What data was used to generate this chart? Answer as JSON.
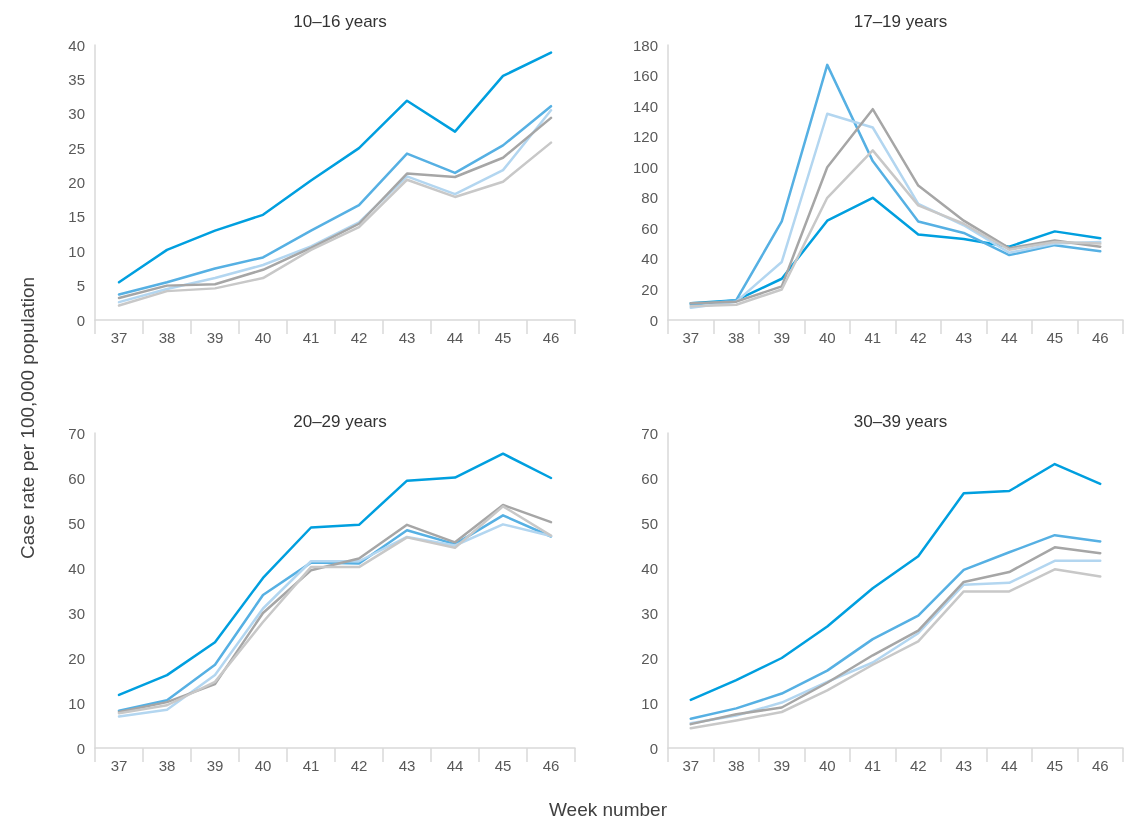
{
  "chart_data": [
    {
      "type": "line",
      "title": "10–16 years",
      "ylabel": "Case rate per 100,000 population",
      "categories": [
        "37",
        "38",
        "39",
        "40",
        "41",
        "42",
        "43",
        "44",
        "45",
        "46"
      ],
      "ylim": [
        0,
        40
      ],
      "yticks": [
        0,
        5,
        10,
        15,
        20,
        25,
        30,
        35,
        40
      ],
      "series": [
        {
          "color": "#009fdf",
          "values": [
            5.5,
            10.2,
            13,
            15.3,
            20.3,
            25,
            31.9,
            27.4,
            35.5,
            38.9
          ]
        },
        {
          "color": "#56b0e3",
          "values": [
            3.7,
            5.5,
            7.5,
            9.1,
            13,
            16.7,
            24.2,
            21.4,
            25.4,
            31.1
          ]
        },
        {
          "color": "#b3d6f0",
          "values": [
            2.6,
            4.5,
            6.1,
            8,
            10.7,
            14.2,
            20.9,
            18.3,
            21.8,
            30.5
          ]
        },
        {
          "color": "#a6a6a6",
          "values": [
            3.2,
            5,
            5.2,
            7.3,
            10.5,
            14,
            21.3,
            20.8,
            23.6,
            29.4
          ]
        },
        {
          "color": "#c8c8c8",
          "values": [
            2.1,
            4.2,
            4.6,
            6.1,
            10.2,
            13.5,
            20.4,
            17.9,
            20.1,
            25.8
          ]
        }
      ]
    },
    {
      "type": "line",
      "title": "17–19 years",
      "categories": [
        "37",
        "38",
        "39",
        "40",
        "41",
        "42",
        "43",
        "44",
        "45",
        "46"
      ],
      "ylim": [
        0,
        180
      ],
      "yticks": [
        0,
        20,
        40,
        60,
        80,
        100,
        120,
        140,
        160,
        180
      ],
      "series": [
        {
          "color": "#009fdf",
          "values": [
            11,
            13,
            27,
            65,
            80,
            56,
            53,
            48,
            58,
            53.5
          ]
        },
        {
          "color": "#56b0e3",
          "values": [
            10,
            13,
            64.5,
            167,
            104,
            64.5,
            57,
            42.5,
            49,
            45
          ]
        },
        {
          "color": "#b3d6f0",
          "values": [
            8,
            12,
            38,
            135,
            126,
            76,
            62,
            44,
            50,
            51
          ]
        },
        {
          "color": "#a6a6a6",
          "values": [
            11,
            12,
            22,
            100,
            138,
            88,
            65,
            47,
            52,
            48
          ]
        },
        {
          "color": "#c8c8c8",
          "values": [
            9,
            10,
            20,
            80,
            111,
            75,
            63,
            46,
            51,
            50
          ]
        }
      ]
    },
    {
      "type": "line",
      "title": "20–29 years",
      "xlabel": "Week number",
      "categories": [
        "37",
        "38",
        "39",
        "40",
        "41",
        "42",
        "43",
        "44",
        "45",
        "46"
      ],
      "ylim": [
        0,
        70
      ],
      "yticks": [
        0,
        10,
        20,
        30,
        40,
        50,
        60,
        70
      ],
      "series": [
        {
          "color": "#009fdf",
          "values": [
            11.8,
            16.2,
            23.5,
            37.8,
            49,
            49.6,
            59.4,
            60.1,
            65.4,
            60
          ]
        },
        {
          "color": "#56b0e3",
          "values": [
            8.3,
            10.6,
            18.5,
            34,
            41.2,
            41,
            48.4,
            45.3,
            51.7,
            47
          ]
        },
        {
          "color": "#b3d6f0",
          "values": [
            7,
            8.5,
            16.2,
            31,
            41.5,
            41.5,
            46.9,
            45,
            49.7,
            47.1
          ]
        },
        {
          "color": "#a6a6a6",
          "values": [
            8,
            10.2,
            14.2,
            30,
            39.5,
            42.1,
            49.6,
            45.7,
            54,
            50.2
          ]
        },
        {
          "color": "#c8c8c8",
          "values": [
            7.7,
            9.5,
            14.7,
            28,
            40.2,
            40.2,
            46.8,
            44.5,
            53.7,
            47.2
          ]
        }
      ]
    },
    {
      "type": "line",
      "title": "30–39 years",
      "categories": [
        "37",
        "38",
        "39",
        "40",
        "41",
        "42",
        "43",
        "44",
        "45",
        "46"
      ],
      "ylim": [
        0,
        70
      ],
      "yticks": [
        0,
        10,
        20,
        30,
        40,
        50,
        60,
        70
      ],
      "series": [
        {
          "color": "#009fdf",
          "values": [
            10.7,
            15.1,
            20,
            27,
            35.5,
            42.6,
            56.6,
            57.1,
            63.1,
            58.7
          ]
        },
        {
          "color": "#56b0e3",
          "values": [
            6.5,
            8.8,
            12.1,
            17.2,
            24.2,
            29.4,
            39.6,
            43.5,
            47.3,
            45.9
          ]
        },
        {
          "color": "#b3d6f0",
          "values": [
            5.5,
            7.2,
            10.1,
            14.7,
            19,
            25.5,
            36.3,
            36.7,
            41.6,
            41.6
          ]
        },
        {
          "color": "#a6a6a6",
          "values": [
            5.3,
            7.5,
            9,
            14.5,
            20.6,
            26.1,
            36.9,
            39.1,
            44.6,
            43.3
          ]
        },
        {
          "color": "#c8c8c8",
          "values": [
            4.4,
            6.1,
            8,
            12.8,
            18.5,
            23.7,
            34.8,
            34.8,
            39.7,
            38.1
          ]
        }
      ]
    }
  ]
}
